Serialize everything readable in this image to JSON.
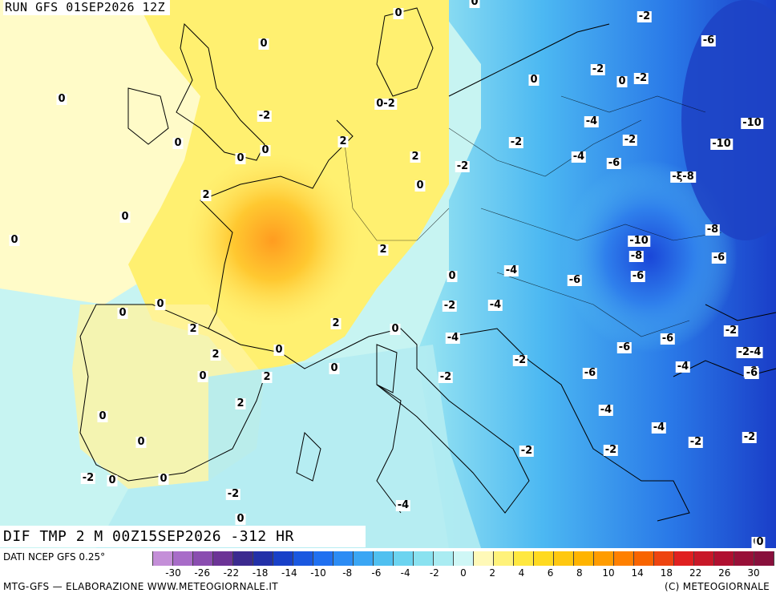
{
  "header": {
    "run_label": "RUN GFS 01SEP2026 12Z"
  },
  "map": {
    "field_label": "DIF TMP 2 M 00Z15SEP2026 -312 HR",
    "isolines": [
      {
        "text": "0",
        "k": "a1"
      },
      {
        "text": "0",
        "k": "a2"
      },
      {
        "text": "0",
        "k": "a3"
      },
      {
        "text": "-2",
        "k": "a4"
      },
      {
        "text": "0",
        "k": "a5"
      },
      {
        "text": "0-2",
        "k": "a6"
      },
      {
        "text": "0",
        "k": "a7"
      },
      {
        "text": "2",
        "k": "a8"
      },
      {
        "text": "2",
        "k": "a9"
      },
      {
        "text": "0",
        "k": "a10"
      },
      {
        "text": "0",
        "k": "a11"
      },
      {
        "text": "2",
        "k": "a12"
      },
      {
        "text": "0",
        "k": "a13"
      },
      {
        "text": "-2",
        "k": "a14"
      },
      {
        "text": "0",
        "k": "a15"
      },
      {
        "text": "0",
        "k": "a16"
      },
      {
        "text": "-6",
        "k": "a17"
      },
      {
        "text": "-2",
        "k": "a18"
      },
      {
        "text": "0",
        "k": "a19"
      },
      {
        "text": "-2",
        "k": "a20"
      },
      {
        "text": "0",
        "k": "a21"
      },
      {
        "text": "-4",
        "k": "a22"
      },
      {
        "text": "-2",
        "k": "a23"
      },
      {
        "text": "-10",
        "k": "a24"
      },
      {
        "text": "-10",
        "k": "a25"
      },
      {
        "text": "-2",
        "k": "a26"
      },
      {
        "text": "-4",
        "k": "a27"
      },
      {
        "text": "-6",
        "k": "a28"
      },
      {
        "text": "-2",
        "k": "a29"
      },
      {
        "text": "-ξ-8",
        "k": "a30"
      },
      {
        "text": "0",
        "k": "a31"
      },
      {
        "text": "2",
        "k": "a32"
      },
      {
        "text": "0",
        "k": "a33"
      },
      {
        "text": "-8",
        "k": "a34"
      },
      {
        "text": "-10",
        "k": "a35"
      },
      {
        "text": "-8",
        "k": "a36"
      },
      {
        "text": "-6",
        "k": "a37"
      },
      {
        "text": "2",
        "k": "a38"
      },
      {
        "text": "-4",
        "k": "a39"
      },
      {
        "text": "-6",
        "k": "a40"
      },
      {
        "text": "-6",
        "k": "a41"
      },
      {
        "text": "0",
        "k": "a42"
      },
      {
        "text": "0",
        "k": "a43"
      },
      {
        "text": "-2",
        "k": "a44"
      },
      {
        "text": "-4",
        "k": "a45"
      },
      {
        "text": "2",
        "k": "a46"
      },
      {
        "text": "2",
        "k": "a47"
      },
      {
        "text": "0",
        "k": "a48"
      },
      {
        "text": "-2",
        "k": "a49"
      },
      {
        "text": "-4",
        "k": "a50"
      },
      {
        "text": "2",
        "k": "a51"
      },
      {
        "text": "0",
        "k": "a52"
      },
      {
        "text": "-6",
        "k": "a53"
      },
      {
        "text": "-6",
        "k": "a54"
      },
      {
        "text": "-2-4",
        "k": "a55"
      },
      {
        "text": "0",
        "k": "a56"
      },
      {
        "text": "-2",
        "k": "a57"
      },
      {
        "text": "-4",
        "k": "a58"
      },
      {
        "text": "-6",
        "k": "a59"
      },
      {
        "text": "-6",
        "k": "a60"
      },
      {
        "text": "2",
        "k": "a61"
      },
      {
        "text": "-2",
        "k": "a62"
      },
      {
        "text": "-6",
        "k": "a63"
      },
      {
        "text": "0",
        "k": "a64"
      },
      {
        "text": "0",
        "k": "a65"
      },
      {
        "text": "-4",
        "k": "a66"
      },
      {
        "text": "0",
        "k": "a67"
      },
      {
        "text": "-4",
        "k": "a68"
      },
      {
        "text": "-2",
        "k": "a69"
      },
      {
        "text": "-2",
        "k": "a70"
      },
      {
        "text": "-2",
        "k": "a71"
      },
      {
        "text": "-2",
        "k": "a72"
      },
      {
        "text": "-2",
        "k": "a73"
      },
      {
        "text": "0",
        "k": "a74"
      },
      {
        "text": "0",
        "k": "a75"
      },
      {
        "text": "-2",
        "k": "a76"
      },
      {
        "text": "-4",
        "k": "a77"
      },
      {
        "text": "0",
        "k": "a78"
      },
      {
        "text": "0",
        "k": "a79"
      }
    ]
  },
  "legend": {
    "source_label": "DATI NCEP GFS 0.25°",
    "colors": [
      "#c48fd8",
      "#a86cc8",
      "#8a4db0",
      "#6c3496",
      "#3b2a8f",
      "#2230a8",
      "#1840c8",
      "#1a58e0",
      "#2070f0",
      "#2c8cf4",
      "#3aa6f4",
      "#50c0f0",
      "#6cd4f0",
      "#8ae2f0",
      "#aaecf2",
      "#cff7f6",
      "#fff9b8",
      "#fff27a",
      "#ffe840",
      "#ffda20",
      "#ffc810",
      "#ffb400",
      "#ff9c00",
      "#ff8000",
      "#f86400",
      "#ee4410",
      "#e02020",
      "#c81828",
      "#b01030",
      "#981038",
      "#88103c"
    ],
    "ticks": [
      "-30",
      "-26",
      "-22",
      "-18",
      "-14",
      "-10",
      "-8",
      "-6",
      "-4",
      "-2",
      "0",
      "2",
      "4",
      "6",
      "8",
      "10",
      "14",
      "18",
      "22",
      "26",
      "30"
    ]
  },
  "footer": {
    "left": "MTG-GFS — ELABORAZIONE WWW.METEOGIORNALE.IT",
    "right": "(C) METEOGIORNALE"
  }
}
